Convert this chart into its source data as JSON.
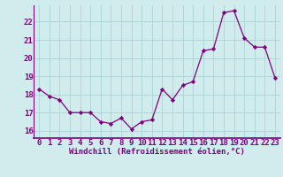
{
  "x": [
    0,
    1,
    2,
    3,
    4,
    5,
    6,
    7,
    8,
    9,
    10,
    11,
    12,
    13,
    14,
    15,
    16,
    17,
    18,
    19,
    20,
    21,
    22,
    23
  ],
  "y": [
    18.3,
    17.9,
    17.7,
    17.0,
    17.0,
    17.0,
    16.5,
    16.4,
    16.7,
    16.1,
    16.5,
    16.6,
    18.3,
    17.7,
    18.5,
    18.7,
    20.4,
    20.5,
    22.5,
    22.6,
    21.1,
    20.6,
    20.6,
    18.9
  ],
  "line_color": "#800080",
  "marker": "D",
  "marker_size": 2.2,
  "bg_color": "#d0ecec",
  "grid_color": "#b0d8d8",
  "xlabel": "Windchill (Refroidissement éolien,°C)",
  "xlabel_fontsize": 6.5,
  "ylabel_ticks": [
    16,
    17,
    18,
    19,
    20,
    21,
    22
  ],
  "ylim": [
    15.6,
    22.9
  ],
  "xlim": [
    -0.5,
    23.5
  ],
  "tick_fontsize": 6.5,
  "tick_color": "#800080",
  "spine_color": "#800080",
  "xlabel_bold": true
}
